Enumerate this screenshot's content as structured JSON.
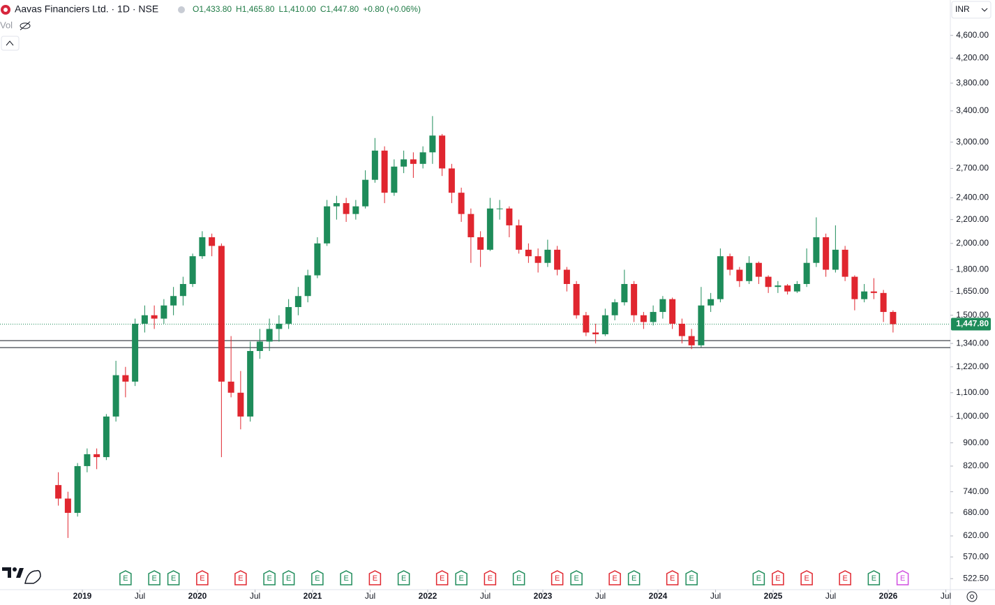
{
  "chart_data": {
    "type": "candlestick",
    "title": "Aavas Financiers Ltd. · 1D · NSE",
    "ohlc_legend": [
      {
        "value": 1433.8,
        "label": "O1,433.80"
      },
      {
        "value": 1465.8,
        "label": "H1,465.80"
      },
      {
        "value": 1410,
        "label": "L1,410.00"
      },
      {
        "value": 1447.8,
        "label": "C1,447.80"
      }
    ],
    "change_label": "+0.80 (+0.06%)",
    "volume_label": "Vol",
    "currency": "INR",
    "last_price": {
      "value": 1447.8,
      "label": "1,447.80"
    },
    "up_color": "#1e8c5a",
    "down_color": "#e0262f",
    "log_scale": true,
    "x": [
      "2018-10",
      "2018-11",
      "2018-12",
      "2019-01",
      "2019-02",
      "2019-03",
      "2019-04",
      "2019-05",
      "2019-06",
      "2019-07",
      "2019-08",
      "2019-09",
      "2019-10",
      "2019-11",
      "2019-12",
      "2020-01",
      "2020-02",
      "2020-03",
      "2020-04",
      "2020-05",
      "2020-06",
      "2020-07",
      "2020-08",
      "2020-09",
      "2020-10",
      "2020-11",
      "2020-12",
      "2021-01",
      "2021-02",
      "2021-03",
      "2021-04",
      "2021-05",
      "2021-06",
      "2021-07",
      "2021-08",
      "2021-09",
      "2021-10",
      "2021-11",
      "2021-12",
      "2022-01",
      "2022-02",
      "2022-03",
      "2022-04",
      "2022-05",
      "2022-06",
      "2022-07",
      "2022-08",
      "2022-09",
      "2022-10",
      "2022-11",
      "2022-12",
      "2023-01",
      "2023-02",
      "2023-03",
      "2023-04",
      "2023-05",
      "2023-06",
      "2023-07",
      "2023-08",
      "2023-09",
      "2023-10",
      "2023-11",
      "2023-12",
      "2024-01",
      "2024-02",
      "2024-03",
      "2024-04",
      "2024-05",
      "2024-06",
      "2024-07",
      "2024-08",
      "2024-09",
      "2024-10",
      "2024-11",
      "2024-12",
      "2025-01",
      "2025-02",
      "2025-03",
      "2025-04",
      "2025-05",
      "2025-06",
      "2025-07",
      "2025-08",
      "2025-09",
      "2025-10",
      "2025-11",
      "2025-12",
      "2026-01"
    ],
    "open": [
      760,
      720,
      680,
      820,
      860,
      850,
      1000,
      1180,
      1150,
      1450,
      1500,
      1480,
      1560,
      1620,
      1700,
      1900,
      2050,
      1980,
      1150,
      1100,
      1000,
      1300,
      1350,
      1420,
      1450,
      1550,
      1620,
      1760,
      2000,
      2320,
      2350,
      2250,
      2320,
      2580,
      2900,
      2450,
      2720,
      2800,
      2750,
      2880,
      3080,
      2700,
      2450,
      2250,
      2050,
      1950,
      2300,
      2300,
      2150,
      1950,
      1900,
      1850,
      1950,
      1800,
      1700,
      1500,
      1400,
      1390,
      1500,
      1580,
      1700,
      1500,
      1460,
      1520,
      1600,
      1450,
      1380,
      1330,
      1560,
      1600,
      1900,
      1800,
      1720,
      1850,
      1750,
      1680,
      1690,
      1650,
      1700,
      1850,
      2050,
      1800,
      1950,
      1750,
      1600,
      1650,
      1640,
      1520
    ],
    "high": [
      800,
      740,
      830,
      880,
      880,
      1010,
      1250,
      1220,
      1480,
      1560,
      1560,
      1600,
      1680,
      1750,
      1920,
      2100,
      2080,
      2000,
      1380,
      1200,
      1350,
      1420,
      1480,
      1500,
      1600,
      1680,
      1800,
      2050,
      2380,
      2420,
      2400,
      2380,
      2680,
      3050,
      2950,
      2800,
      2900,
      2880,
      2950,
      3330,
      3100,
      2750,
      2500,
      2300,
      2100,
      2400,
      2380,
      2320,
      2200,
      2000,
      1960,
      2030,
      1980,
      1820,
      1720,
      1520,
      1450,
      1540,
      1600,
      1800,
      1720,
      1520,
      1560,
      1620,
      1610,
      1480,
      1420,
      1680,
      1640,
      1960,
      1920,
      1820,
      1900,
      1860,
      1760,
      1720,
      1700,
      1720,
      1960,
      2220,
      2080,
      2150,
      1980,
      1760,
      1700,
      1740,
      1660,
      1530
    ],
    "low": [
      700,
      615,
      670,
      800,
      810,
      840,
      980,
      1080,
      1130,
      1400,
      1420,
      1450,
      1500,
      1560,
      1680,
      1880,
      1900,
      850,
      1080,
      950,
      980,
      1260,
      1300,
      1350,
      1420,
      1500,
      1580,
      1740,
      1980,
      2200,
      2180,
      2200,
      2300,
      2550,
      2350,
      2420,
      2650,
      2600,
      2700,
      2750,
      2620,
      2350,
      2180,
      1850,
      1820,
      1940,
      2200,
      2050,
      1920,
      1850,
      1780,
      1820,
      1760,
      1650,
      1480,
      1380,
      1340,
      1380,
      1470,
      1560,
      1460,
      1420,
      1440,
      1480,
      1420,
      1340,
      1310,
      1320,
      1520,
      1580,
      1760,
      1680,
      1700,
      1700,
      1640,
      1640,
      1630,
      1640,
      1680,
      1820,
      1750,
      1780,
      1720,
      1530,
      1580,
      1600,
      1460,
      1400
    ],
    "close": [
      720,
      680,
      820,
      860,
      850,
      1000,
      1180,
      1150,
      1450,
      1500,
      1480,
      1560,
      1620,
      1700,
      1900,
      2050,
      1980,
      1150,
      1100,
      1000,
      1300,
      1350,
      1420,
      1450,
      1550,
      1620,
      1760,
      2000,
      2320,
      2350,
      2250,
      2320,
      2580,
      2900,
      2450,
      2720,
      2800,
      2750,
      2880,
      3080,
      2700,
      2450,
      2250,
      2050,
      1950,
      2300,
      2300,
      2150,
      1950,
      1900,
      1850,
      1950,
      1800,
      1700,
      1500,
      1400,
      1390,
      1500,
      1580,
      1700,
      1500,
      1460,
      1520,
      1600,
      1450,
      1380,
      1330,
      1560,
      1600,
      1900,
      1800,
      1720,
      1850,
      1750,
      1680,
      1690,
      1650,
      1700,
      1850,
      2050,
      1800,
      1950,
      1750,
      1600,
      1650,
      1640,
      1520,
      1447.8
    ],
    "hlines": [
      1355,
      1318
    ],
    "ylim": [
      500,
      5300
    ],
    "yticks": [
      {
        "value": 522.5,
        "label": "522.50"
      },
      {
        "value": 570,
        "label": "570.00"
      },
      {
        "value": 620,
        "label": "620.00"
      },
      {
        "value": 680,
        "label": "680.00"
      },
      {
        "value": 740,
        "label": "740.00"
      },
      {
        "value": 820,
        "label": "820.00"
      },
      {
        "value": 900,
        "label": "900.00"
      },
      {
        "value": 1000,
        "label": "1,000.00"
      },
      {
        "value": 1100,
        "label": "1,100.00"
      },
      {
        "value": 1220,
        "label": "1,220.00"
      },
      {
        "value": 1340,
        "label": "1,340.00"
      },
      {
        "value": 1500,
        "label": "1,500.00"
      },
      {
        "value": 1650,
        "label": "1,650.00"
      },
      {
        "value": 1800,
        "label": "1,800.00"
      },
      {
        "value": 2000,
        "label": "2,000.00"
      },
      {
        "value": 2200,
        "label": "2,200.00"
      },
      {
        "value": 2400,
        "label": "2,400.00"
      },
      {
        "value": 2700,
        "label": "2,700.00"
      },
      {
        "value": 3000,
        "label": "3,000.00"
      },
      {
        "value": 3400,
        "label": "3,400.00"
      },
      {
        "value": 3800,
        "label": "3,800.00"
      },
      {
        "value": 4200,
        "label": "4,200.00"
      },
      {
        "value": 4600,
        "label": "4,600.00"
      }
    ],
    "xticks": [
      {
        "value": "2019-01",
        "label": "2019"
      },
      {
        "value": "2019-07",
        "label": "Jul"
      },
      {
        "value": "2020-01",
        "label": "2020"
      },
      {
        "value": "2020-07",
        "label": "Jul"
      },
      {
        "value": "2021-01",
        "label": "2021"
      },
      {
        "value": "2021-07",
        "label": "Jul"
      },
      {
        "value": "2022-01",
        "label": "2022"
      },
      {
        "value": "2022-07",
        "label": "Jul"
      },
      {
        "value": "2023-01",
        "label": "2023"
      },
      {
        "value": "2023-07",
        "label": "Jul"
      },
      {
        "value": "2024-01",
        "label": "2024"
      },
      {
        "value": "2024-07",
        "label": "Jul"
      },
      {
        "value": "2025-01",
        "label": "2025"
      },
      {
        "value": "2025-07",
        "label": "Jul"
      },
      {
        "value": "2026-01",
        "label": "2026"
      },
      {
        "value": "2026-07",
        "label": "Jul"
      }
    ],
    "earnings": [
      {
        "x": "2019-05",
        "label": "E",
        "color": "#1e8c5a"
      },
      {
        "x": "2019-08",
        "label": "E",
        "color": "#1e8c5a"
      },
      {
        "x": "2019-10",
        "label": "E",
        "color": "#1e8c5a"
      },
      {
        "x": "2020-01",
        "label": "E",
        "color": "#e0262f"
      },
      {
        "x": "2020-05",
        "label": "E",
        "color": "#e0262f"
      },
      {
        "x": "2020-08",
        "label": "E",
        "color": "#1e8c5a"
      },
      {
        "x": "2020-10",
        "label": "E",
        "color": "#1e8c5a"
      },
      {
        "x": "2021-01",
        "label": "E",
        "color": "#1e8c5a"
      },
      {
        "x": "2021-04",
        "label": "E",
        "color": "#1e8c5a"
      },
      {
        "x": "2021-07",
        "label": "E",
        "color": "#e0262f"
      },
      {
        "x": "2021-10",
        "label": "E",
        "color": "#1e8c5a"
      },
      {
        "x": "2022-02",
        "label": "E",
        "color": "#e0262f"
      },
      {
        "x": "2022-04",
        "label": "E",
        "color": "#1e8c5a"
      },
      {
        "x": "2022-07",
        "label": "E",
        "color": "#e0262f"
      },
      {
        "x": "2022-10",
        "label": "E",
        "color": "#1e8c5a"
      },
      {
        "x": "2023-02",
        "label": "E",
        "color": "#e0262f"
      },
      {
        "x": "2023-04",
        "label": "E",
        "color": "#1e8c5a"
      },
      {
        "x": "2023-08",
        "label": "E",
        "color": "#e0262f"
      },
      {
        "x": "2023-10",
        "label": "E",
        "color": "#1e8c5a"
      },
      {
        "x": "2024-02",
        "label": "E",
        "color": "#e0262f"
      },
      {
        "x": "2024-04",
        "label": "E",
        "color": "#1e8c5a"
      },
      {
        "x": "2024-11",
        "label": "E",
        "color": "#1e8c5a"
      },
      {
        "x": "2025-01",
        "label": "E",
        "color": "#e0262f"
      },
      {
        "x": "2025-04",
        "label": "E",
        "color": "#e0262f"
      },
      {
        "x": "2025-08",
        "label": "E",
        "color": "#e0262f"
      },
      {
        "x": "2025-11",
        "label": "E",
        "color": "#1e8c5a"
      },
      {
        "x": "2026-02",
        "label": "E",
        "color": "#d04ee0"
      }
    ]
  }
}
